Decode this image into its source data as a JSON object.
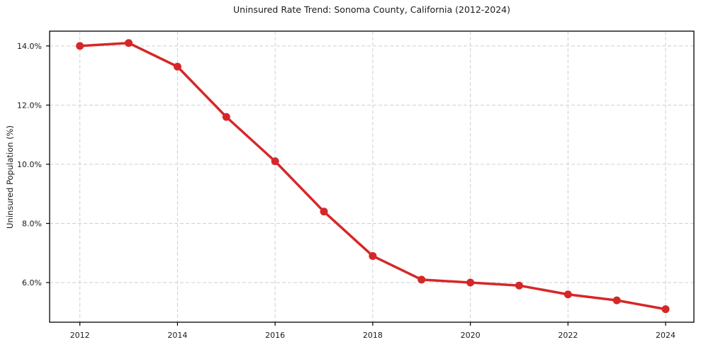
{
  "chart_data": {
    "type": "line",
    "title": "Uninsured Rate Trend: Sonoma County, California (2012-2024)",
    "xlabel": "",
    "ylabel": "Uninsured Population (%)",
    "x": [
      2012,
      2013,
      2014,
      2015,
      2016,
      2017,
      2018,
      2019,
      2020,
      2021,
      2022,
      2023,
      2024
    ],
    "values": [
      14.0,
      14.1,
      13.3,
      11.6,
      10.1,
      8.4,
      6.9,
      6.1,
      6.0,
      5.9,
      5.6,
      5.4,
      5.1
    ],
    "xlim": [
      2011.38,
      2024.58
    ],
    "ylim": [
      4.66,
      14.5
    ],
    "xticks": {
      "values": [
        2012,
        2014,
        2016,
        2018,
        2020,
        2022,
        2024
      ],
      "labels": [
        "2012",
        "2014",
        "2016",
        "2018",
        "2020",
        "2022",
        "2024"
      ]
    },
    "yticks": {
      "values": [
        6,
        8,
        10,
        12,
        14
      ],
      "labels": [
        "6.0%",
        "8.0%",
        "10.0%",
        "12.0%",
        "14.0%"
      ]
    },
    "grid": "dashed",
    "legend": "none",
    "colors": {
      "line": "#d62728",
      "marker": "#d62728",
      "grid": "#cfcfcf",
      "spine": "#000000",
      "background": "#ffffff",
      "text": "#1a1a1a"
    }
  }
}
